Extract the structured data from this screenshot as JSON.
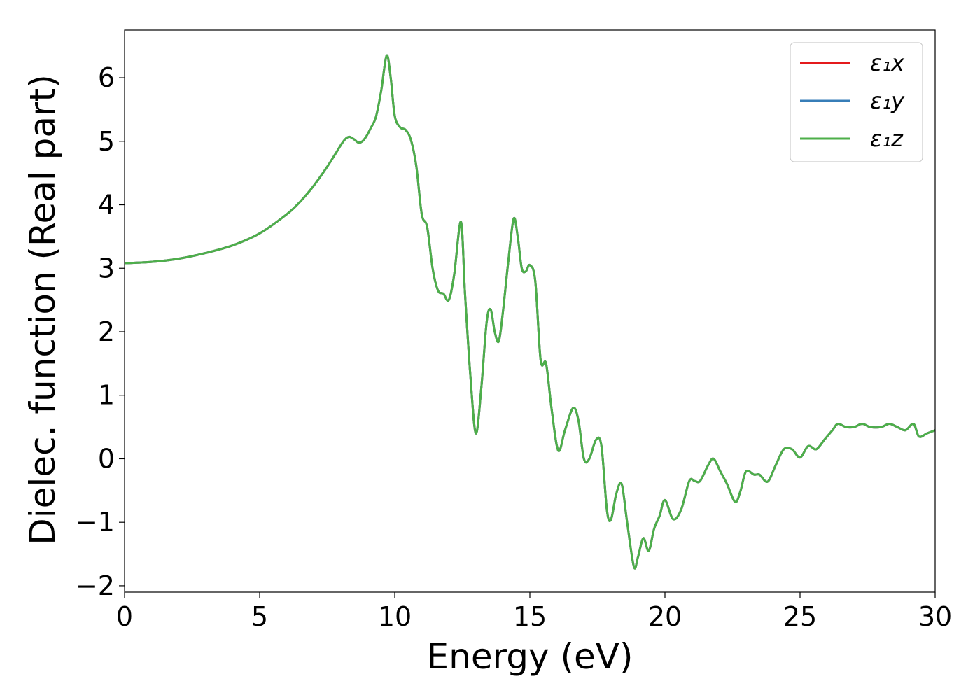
{
  "chart_data": {
    "type": "line",
    "title": "",
    "xlabel": "Energy (eV)",
    "ylabel": "Dielec. function (Real part)",
    "xlim": [
      0,
      30
    ],
    "ylim": [
      -2.1,
      6.75
    ],
    "xticks": [
      0,
      5,
      10,
      15,
      20,
      25,
      30
    ],
    "xtick_labels": [
      "0",
      "5",
      "10",
      "15",
      "20",
      "25",
      "30"
    ],
    "yticks": [
      -2,
      -1,
      0,
      1,
      2,
      3,
      4,
      5,
      6
    ],
    "ytick_labels": [
      "−2",
      "−1",
      "0",
      "1",
      "2",
      "3",
      "4",
      "5",
      "6"
    ],
    "grid": false,
    "legend_position": "top-right",
    "series": [
      {
        "name": "ε₁x",
        "color": "#e41a1c",
        "x": [
          0,
          1,
          2,
          3,
          4,
          5,
          6,
          6.5,
          7,
          7.5,
          7.8,
          8.1,
          8.3,
          8.5,
          8.65,
          8.8,
          8.95,
          9.1,
          9.3,
          9.5,
          9.7,
          9.85,
          10.0,
          10.2,
          10.4,
          10.6,
          10.8,
          11.0,
          11.2,
          11.4,
          11.6,
          11.8,
          12.0,
          12.2,
          12.45,
          12.6,
          12.8,
          13.0,
          13.2,
          13.4,
          13.55,
          13.7,
          13.85,
          14.0,
          14.2,
          14.4,
          14.55,
          14.7,
          14.85,
          15.0,
          15.2,
          15.4,
          15.6,
          15.8,
          16.05,
          16.3,
          16.6,
          16.8,
          17.0,
          17.2,
          17.45,
          17.65,
          17.85,
          18.0,
          18.2,
          18.4,
          18.6,
          18.85,
          19.0,
          19.2,
          19.4,
          19.6,
          19.8,
          20.0,
          20.3,
          20.6,
          20.9,
          21.1,
          21.3,
          21.6,
          21.8,
          22.05,
          22.3,
          22.6,
          22.8,
          23.0,
          23.3,
          23.5,
          23.8,
          24.1,
          24.4,
          24.7,
          25.0,
          25.3,
          25.6,
          25.9,
          26.2,
          26.4,
          26.7,
          27.0,
          27.3,
          27.6,
          28.0,
          28.3,
          28.6,
          28.9,
          29.2,
          29.4,
          29.7,
          30.0
        ],
        "y": [
          3.08,
          3.1,
          3.15,
          3.24,
          3.36,
          3.55,
          3.85,
          4.05,
          4.3,
          4.6,
          4.8,
          5.0,
          5.07,
          5.03,
          4.98,
          5.0,
          5.08,
          5.2,
          5.38,
          5.8,
          6.35,
          6.0,
          5.4,
          5.22,
          5.18,
          5.02,
          4.6,
          3.85,
          3.65,
          3.0,
          2.65,
          2.6,
          2.5,
          2.9,
          3.73,
          2.6,
          1.3,
          0.4,
          1.1,
          2.15,
          2.35,
          2.0,
          1.85,
          2.3,
          3.1,
          3.78,
          3.5,
          3.0,
          2.95,
          3.05,
          2.8,
          1.55,
          1.5,
          0.8,
          0.13,
          0.45,
          0.8,
          0.6,
          0.0,
          0.0,
          0.3,
          0.2,
          -0.8,
          -0.96,
          -0.55,
          -0.4,
          -1.0,
          -1.7,
          -1.55,
          -1.25,
          -1.45,
          -1.1,
          -0.9,
          -0.65,
          -0.95,
          -0.8,
          -0.35,
          -0.35,
          -0.35,
          -0.1,
          0.0,
          -0.2,
          -0.4,
          -0.68,
          -0.5,
          -0.2,
          -0.25,
          -0.25,
          -0.36,
          -0.1,
          0.15,
          0.15,
          0.02,
          0.2,
          0.15,
          0.3,
          0.45,
          0.55,
          0.5,
          0.5,
          0.55,
          0.5,
          0.5,
          0.55,
          0.5,
          0.45,
          0.55,
          0.35,
          0.4,
          0.45
        ]
      },
      {
        "name": "ε₁y",
        "color": "#377eb8",
        "x": [
          0,
          1,
          2,
          3,
          4,
          5,
          6,
          6.5,
          7,
          7.5,
          7.8,
          8.1,
          8.3,
          8.5,
          8.65,
          8.8,
          8.95,
          9.1,
          9.3,
          9.5,
          9.7,
          9.85,
          10.0,
          10.2,
          10.4,
          10.6,
          10.8,
          11.0,
          11.2,
          11.4,
          11.6,
          11.8,
          12.0,
          12.2,
          12.45,
          12.6,
          12.8,
          13.0,
          13.2,
          13.4,
          13.55,
          13.7,
          13.85,
          14.0,
          14.2,
          14.4,
          14.55,
          14.7,
          14.85,
          15.0,
          15.2,
          15.4,
          15.6,
          15.8,
          16.05,
          16.3,
          16.6,
          16.8,
          17.0,
          17.2,
          17.45,
          17.65,
          17.85,
          18.0,
          18.2,
          18.4,
          18.6,
          18.85,
          19.0,
          19.2,
          19.4,
          19.6,
          19.8,
          20.0,
          20.3,
          20.6,
          20.9,
          21.1,
          21.3,
          21.6,
          21.8,
          22.05,
          22.3,
          22.6,
          22.8,
          23.0,
          23.3,
          23.5,
          23.8,
          24.1,
          24.4,
          24.7,
          25.0,
          25.3,
          25.6,
          25.9,
          26.2,
          26.4,
          26.7,
          27.0,
          27.3,
          27.6,
          28.0,
          28.3,
          28.6,
          28.9,
          29.2,
          29.4,
          29.7,
          30.0
        ],
        "y": [
          3.08,
          3.1,
          3.15,
          3.24,
          3.36,
          3.55,
          3.85,
          4.05,
          4.3,
          4.6,
          4.8,
          5.0,
          5.07,
          5.03,
          4.98,
          5.0,
          5.08,
          5.2,
          5.38,
          5.8,
          6.35,
          6.0,
          5.4,
          5.22,
          5.18,
          5.02,
          4.6,
          3.85,
          3.65,
          3.0,
          2.65,
          2.6,
          2.5,
          2.9,
          3.73,
          2.6,
          1.3,
          0.4,
          1.1,
          2.15,
          2.35,
          2.0,
          1.85,
          2.3,
          3.1,
          3.78,
          3.5,
          3.0,
          2.95,
          3.05,
          2.8,
          1.55,
          1.5,
          0.8,
          0.13,
          0.45,
          0.8,
          0.6,
          0.0,
          0.0,
          0.3,
          0.2,
          -0.8,
          -0.96,
          -0.55,
          -0.4,
          -1.0,
          -1.7,
          -1.55,
          -1.25,
          -1.45,
          -1.1,
          -0.9,
          -0.65,
          -0.95,
          -0.8,
          -0.35,
          -0.35,
          -0.35,
          -0.1,
          0.0,
          -0.2,
          -0.4,
          -0.68,
          -0.5,
          -0.2,
          -0.25,
          -0.25,
          -0.36,
          -0.1,
          0.15,
          0.15,
          0.02,
          0.2,
          0.15,
          0.3,
          0.45,
          0.55,
          0.5,
          0.5,
          0.55,
          0.5,
          0.5,
          0.55,
          0.5,
          0.45,
          0.55,
          0.35,
          0.4,
          0.45
        ]
      },
      {
        "name": "ε₁z",
        "color": "#4daf4a",
        "x": [
          0,
          1,
          2,
          3,
          4,
          5,
          6,
          6.5,
          7,
          7.5,
          7.8,
          8.1,
          8.3,
          8.5,
          8.65,
          8.8,
          8.95,
          9.1,
          9.3,
          9.5,
          9.7,
          9.85,
          10.0,
          10.2,
          10.4,
          10.6,
          10.8,
          11.0,
          11.2,
          11.4,
          11.6,
          11.8,
          12.0,
          12.2,
          12.45,
          12.6,
          12.8,
          13.0,
          13.2,
          13.4,
          13.55,
          13.7,
          13.85,
          14.0,
          14.2,
          14.4,
          14.55,
          14.7,
          14.85,
          15.0,
          15.2,
          15.4,
          15.6,
          15.8,
          16.05,
          16.3,
          16.6,
          16.8,
          17.0,
          17.2,
          17.45,
          17.65,
          17.85,
          18.0,
          18.2,
          18.4,
          18.6,
          18.85,
          19.0,
          19.2,
          19.4,
          19.6,
          19.8,
          20.0,
          20.3,
          20.6,
          20.9,
          21.1,
          21.3,
          21.6,
          21.8,
          22.05,
          22.3,
          22.6,
          22.8,
          23.0,
          23.3,
          23.5,
          23.8,
          24.1,
          24.4,
          24.7,
          25.0,
          25.3,
          25.6,
          25.9,
          26.2,
          26.4,
          26.7,
          27.0,
          27.3,
          27.6,
          28.0,
          28.3,
          28.6,
          28.9,
          29.2,
          29.4,
          29.7,
          30.0
        ],
        "y": [
          3.08,
          3.1,
          3.15,
          3.24,
          3.36,
          3.55,
          3.85,
          4.05,
          4.3,
          4.6,
          4.8,
          5.0,
          5.07,
          5.03,
          4.98,
          5.0,
          5.08,
          5.2,
          5.38,
          5.8,
          6.35,
          6.0,
          5.4,
          5.22,
          5.18,
          5.02,
          4.6,
          3.85,
          3.65,
          3.0,
          2.65,
          2.6,
          2.5,
          2.9,
          3.73,
          2.6,
          1.3,
          0.4,
          1.1,
          2.15,
          2.35,
          2.0,
          1.85,
          2.3,
          3.1,
          3.78,
          3.5,
          3.0,
          2.95,
          3.05,
          2.8,
          1.55,
          1.5,
          0.8,
          0.13,
          0.45,
          0.8,
          0.6,
          0.0,
          0.0,
          0.3,
          0.2,
          -0.8,
          -0.96,
          -0.55,
          -0.4,
          -1.0,
          -1.7,
          -1.55,
          -1.25,
          -1.45,
          -1.1,
          -0.9,
          -0.65,
          -0.95,
          -0.8,
          -0.35,
          -0.35,
          -0.35,
          -0.1,
          0.0,
          -0.2,
          -0.4,
          -0.68,
          -0.5,
          -0.2,
          -0.25,
          -0.25,
          -0.36,
          -0.1,
          0.15,
          0.15,
          0.02,
          0.2,
          0.15,
          0.3,
          0.45,
          0.55,
          0.5,
          0.5,
          0.55,
          0.5,
          0.5,
          0.55,
          0.5,
          0.45,
          0.55,
          0.35,
          0.4,
          0.45
        ]
      }
    ]
  }
}
